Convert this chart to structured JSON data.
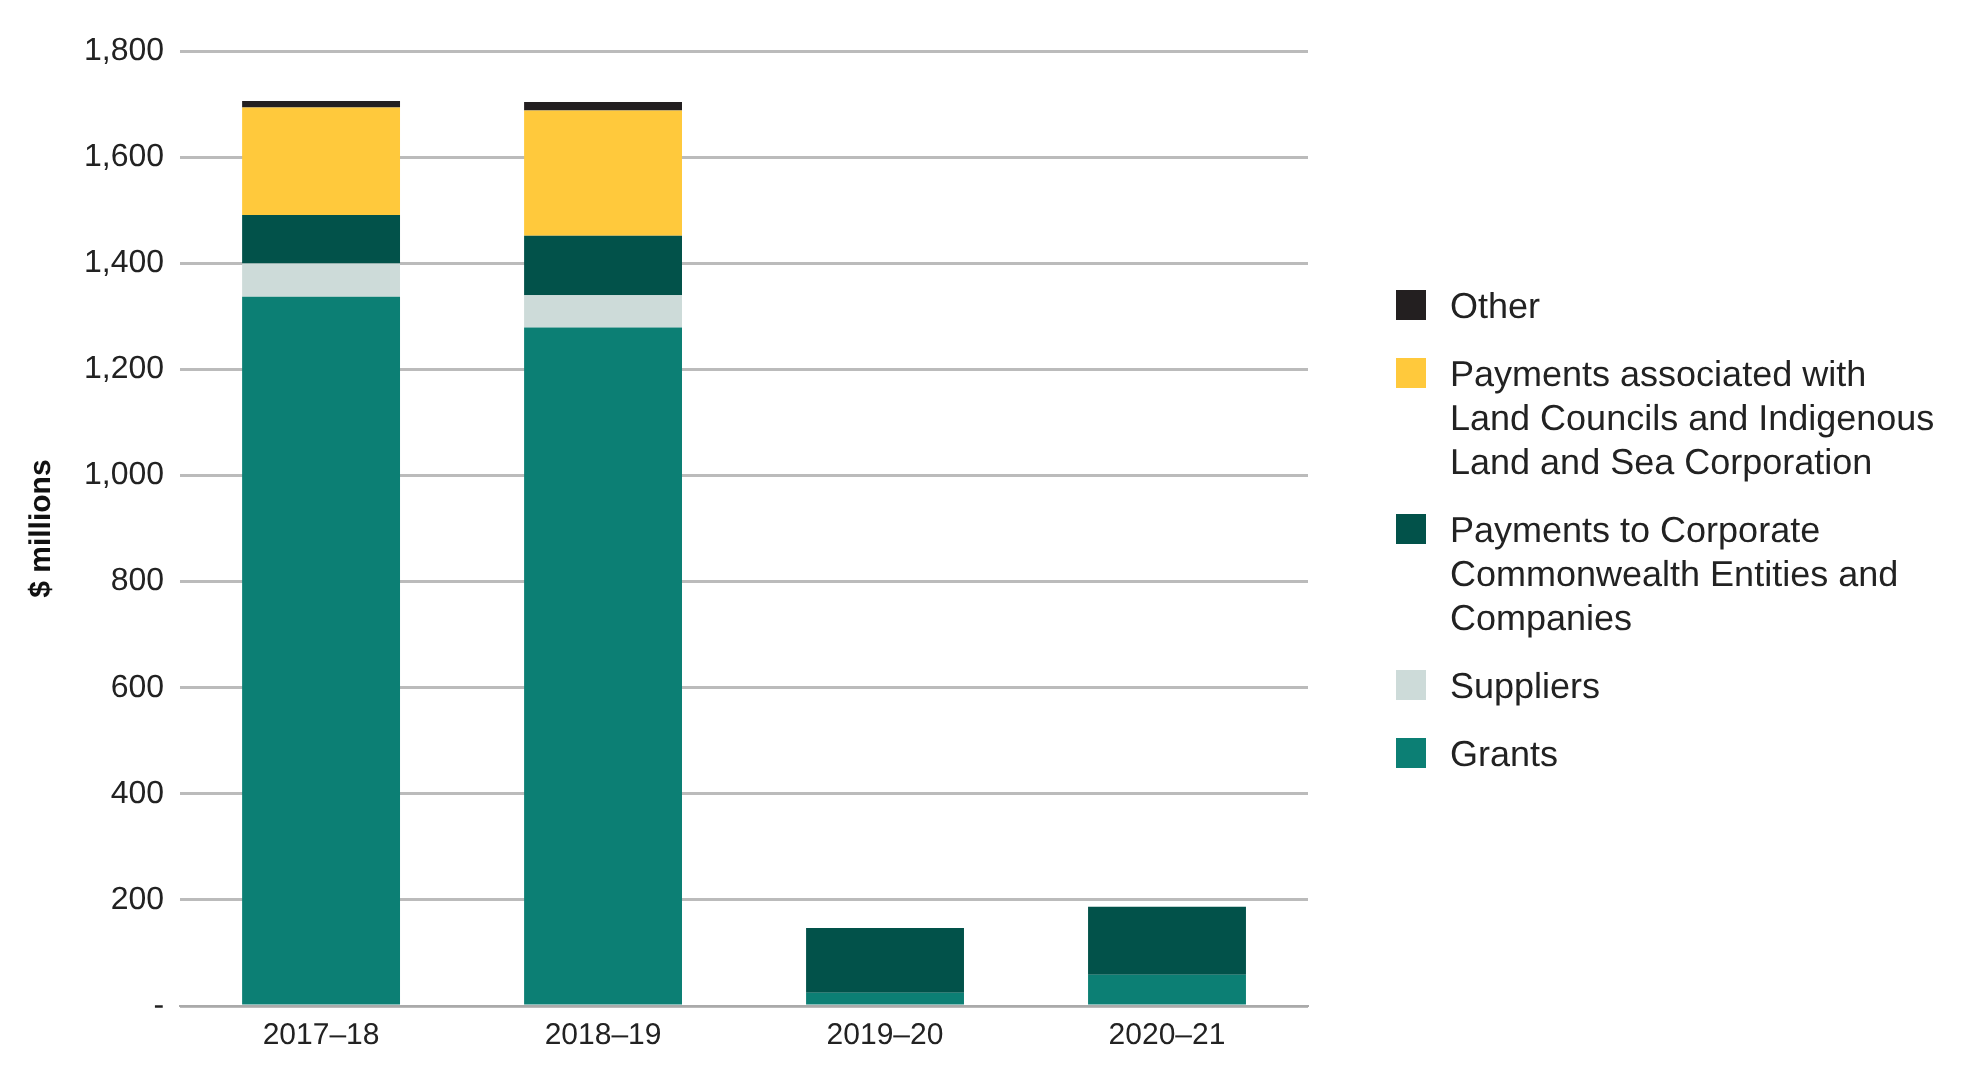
{
  "chart_data": {
    "type": "bar",
    "stacked": true,
    "ylabel": "$ millions",
    "categories": [
      "2017–18",
      "2018–19",
      "2019–20",
      "2020–21"
    ],
    "series": [
      {
        "name": "Grants",
        "color": "#0c7f74",
        "values": [
          1337,
          1279,
          25,
          59
        ]
      },
      {
        "name": "Suppliers",
        "color": "#cddbd9",
        "values": [
          63,
          61,
          0,
          0
        ]
      },
      {
        "name": "Payments to Corporate Commonwealth Entities and Companies",
        "color": "#02524a",
        "values": [
          91,
          112,
          122,
          128
        ]
      },
      {
        "name": "Payments associated with Land Councils and Indigenous Land and Sea Corporation",
        "color": "#ffc93c",
        "values": [
          203,
          236,
          0,
          0
        ]
      },
      {
        "name": "Other",
        "color": "#231f20",
        "values": [
          12,
          16,
          0,
          0
        ]
      }
    ],
    "ylim": [
      0,
      1800
    ],
    "yticks": [
      {
        "value": 0,
        "label": "-"
      },
      {
        "value": 200,
        "label": "200"
      },
      {
        "value": 400,
        "label": "400"
      },
      {
        "value": 600,
        "label": "600"
      },
      {
        "value": 800,
        "label": "800"
      },
      {
        "value": 1000,
        "label": "1,000"
      },
      {
        "value": 1200,
        "label": "1,200"
      },
      {
        "value": 1400,
        "label": "1,400"
      },
      {
        "value": 1600,
        "label": "1,600"
      },
      {
        "value": 1800,
        "label": "1,800"
      }
    ],
    "grid": "y",
    "legend": "right"
  }
}
